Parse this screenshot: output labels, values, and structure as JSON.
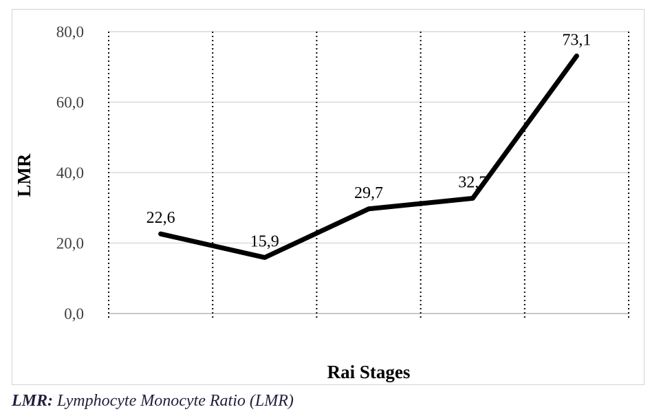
{
  "chart_data": {
    "type": "line",
    "title": "",
    "xlabel": "Rai Stages",
    "ylabel": "LMR",
    "categories": [
      "",
      "",
      "",
      "",
      ""
    ],
    "series": [
      {
        "values": [
          22.6,
          15.9,
          29.7,
          32.7,
          73.1
        ]
      }
    ],
    "data_labels": [
      "22,6",
      "15,9",
      "29,7",
      "32,7",
      "73,1"
    ],
    "y_tick_labels": [
      "0,0",
      "20,0",
      "40,0",
      "60,0",
      "80,0"
    ],
    "ylim": [
      0,
      80
    ],
    "y_ticks": [
      0,
      20,
      40,
      60,
      80
    ],
    "grid": {
      "horizontal": true,
      "vertical": "dotted"
    },
    "line_color": "#000000",
    "grid_color": "#d9d9d9"
  },
  "caption": {
    "abbr": "LMR:",
    "text": " Lymphocyte Monocyte Ratio (LMR)"
  }
}
